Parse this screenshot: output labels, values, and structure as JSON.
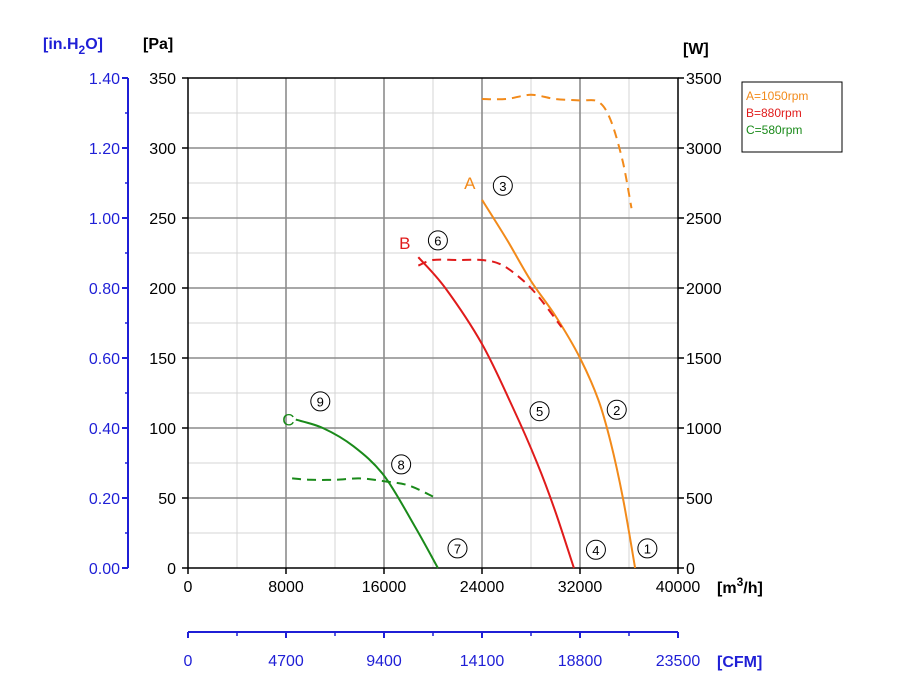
{
  "chart_data": {
    "type": "line",
    "title": "",
    "units": {
      "pressure_inh2o": "[in.H₂O]",
      "pressure_pa": "[Pa]",
      "power": "[W]",
      "flow_m3h": "[m³/h]",
      "flow_cfm": "[CFM]"
    },
    "xlabel": "[m³/h]",
    "ylabel": "[Pa]",
    "y2label": "[W]",
    "x_range": [
      0,
      40000
    ],
    "y_range": [
      0,
      350
    ],
    "y2_range": [
      0,
      3500
    ],
    "grid": true,
    "x_ticks": [
      "0",
      "8000",
      "16000",
      "24000",
      "32000",
      "40000"
    ],
    "x_ticks_cfm": [
      "0",
      "4700",
      "9400",
      "14100",
      "18800",
      "23500"
    ],
    "y_ticks_pa": [
      "0",
      "50",
      "100",
      "150",
      "200",
      "250",
      "300",
      "350"
    ],
    "y_ticks_inh2o": [
      "0.00",
      "0.20",
      "0.40",
      "0.60",
      "0.80",
      "1.00",
      "1.20",
      "1.40"
    ],
    "y_ticks_w": [
      "0",
      "500",
      "1000",
      "1500",
      "2000",
      "2500",
      "3000",
      "3500"
    ],
    "legend": {
      "placement": "top-right",
      "entries": [
        {
          "label": "A=1050rpm",
          "color": "#f28a1a"
        },
        {
          "label": "B=880rpm",
          "color": "#e01b1b"
        },
        {
          "label": "C=580rpm",
          "color": "#1a8a1a"
        }
      ]
    },
    "series": [
      {
        "name": "A",
        "rpm": "1050rpm",
        "color": "#f28a1a",
        "pressure_pa": {
          "x": [
            24000,
            26000,
            28000,
            30000,
            32000,
            33500,
            34500,
            35500,
            36500
          ],
          "y": [
            263,
            235,
            205,
            180,
            150,
            120,
            90,
            50,
            0
          ]
        },
        "power_w": {
          "x": [
            24000,
            26000,
            28000,
            30000,
            32000,
            33500,
            34500,
            35500,
            36200
          ],
          "y": [
            3350,
            3350,
            3380,
            3350,
            3340,
            3330,
            3200,
            2900,
            2570
          ]
        }
      },
      {
        "name": "B",
        "rpm": "880rpm",
        "color": "#e01b1b",
        "pressure_pa": {
          "x": [
            18800,
            21000,
            24000,
            26500,
            28500,
            30000,
            31500
          ],
          "y": [
            222,
            200,
            160,
            115,
            75,
            40,
            0
          ]
        },
        "power_w": {
          "x": [
            18800,
            20000,
            22000,
            24000,
            25500,
            27000,
            28500,
            30500
          ],
          "y": [
            2160,
            2200,
            2200,
            2200,
            2170,
            2080,
            1950,
            1720
          ]
        }
      },
      {
        "name": "C",
        "rpm": "580rpm",
        "color": "#1a8a1a",
        "pressure_pa": {
          "x": [
            8800,
            11000,
            13500,
            16000,
            18500,
            20400
          ],
          "y": [
            106,
            100,
            87,
            66,
            30,
            0
          ]
        },
        "power_w": {
          "x": [
            8500,
            10000,
            12000,
            14000,
            16000,
            18000,
            20000
          ],
          "y": [
            640,
            630,
            630,
            640,
            620,
            590,
            510
          ]
        }
      }
    ],
    "curve_labels": [
      {
        "text": "A",
        "x": 23000,
        "y": 275,
        "color": "#f28a1a"
      },
      {
        "text": "B",
        "x": 17700,
        "y": 232,
        "color": "#e01b1b"
      },
      {
        "text": "C",
        "x": 8200,
        "y": 106,
        "color": "#1a8a1a"
      }
    ],
    "point_markers": [
      {
        "text": "①",
        "x": 37500,
        "y": 14
      },
      {
        "text": "②",
        "x": 35000,
        "y": 113
      },
      {
        "text": "③",
        "x": 25700,
        "y": 273
      },
      {
        "text": "④",
        "x": 33300,
        "y": 13
      },
      {
        "text": "⑤",
        "x": 28700,
        "y": 112
      },
      {
        "text": "⑥",
        "x": 20400,
        "y": 234
      },
      {
        "text": "⑦",
        "x": 22000,
        "y": 14
      },
      {
        "text": "⑧",
        "x": 17400,
        "y": 74
      },
      {
        "text": "⑨",
        "x": 10800,
        "y": 119
      }
    ]
  }
}
